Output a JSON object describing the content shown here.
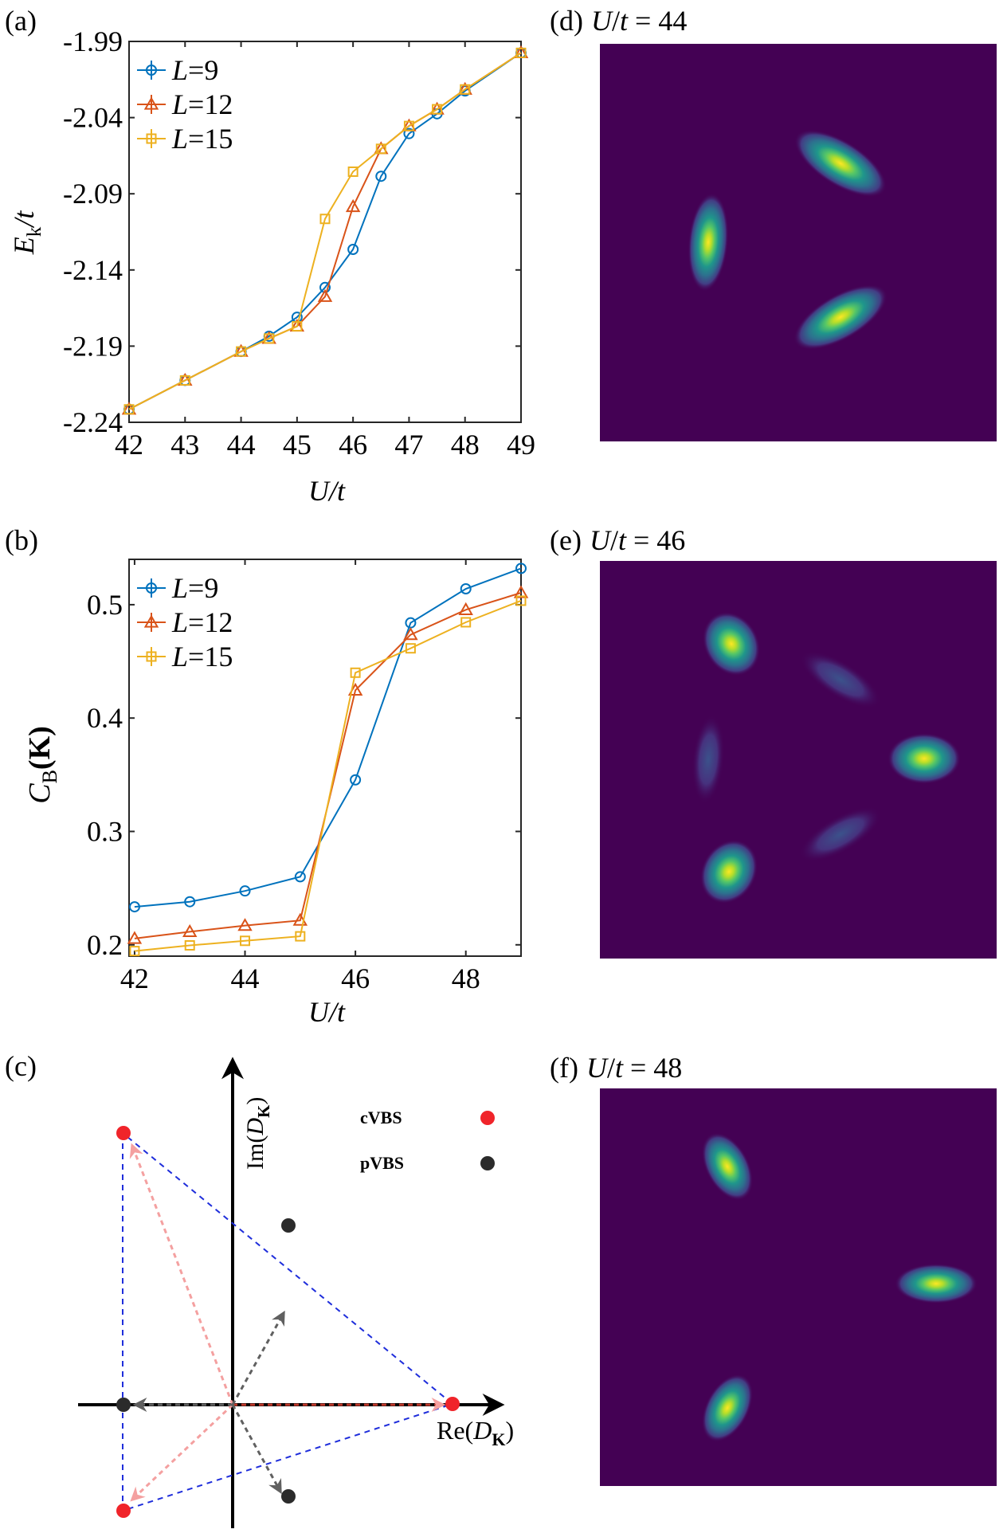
{
  "panel_labels": {
    "a": "(a)",
    "b": "(b)",
    "c": "(c)",
    "d": "(d)",
    "e": "(e)",
    "f": "(f)"
  },
  "heatmap_titles": {
    "d": {
      "var": "U",
      "slash": "/",
      "t": "t",
      "eq": " = 44"
    },
    "e": {
      "var": "U",
      "slash": "/",
      "t": "t",
      "eq": " = 46"
    },
    "f": {
      "var": "U",
      "slash": "/",
      "t": "t",
      "eq": " = 48"
    }
  },
  "colors": {
    "L9": "#0072BD",
    "L12": "#D95319",
    "L15": "#EDB120",
    "heat_bg": "#440154",
    "cvbs": "#F0242A",
    "pvbs": "#2B2B2B",
    "triangle": "#1F2EDB",
    "red_arrow": "#F4A0A0",
    "gray_arrow": "#606060"
  },
  "chart_data": [
    {
      "id": "a",
      "type": "line",
      "xlabel": {
        "main": "U",
        "rest": "/t"
      },
      "ylabel": {
        "main": "E",
        "sub": "k",
        "rest": "/t"
      },
      "xlim": [
        42,
        49
      ],
      "ylim": [
        -2.24,
        -1.99
      ],
      "xticks": [
        42,
        43,
        44,
        45,
        46,
        47,
        48,
        49
      ],
      "xtick_labels": [
        "42",
        "43",
        "44",
        "45",
        "46",
        "47",
        "48",
        "49"
      ],
      "yticks": [
        -2.24,
        -2.19,
        -2.14,
        -2.09,
        -2.04,
        -1.99
      ],
      "ytick_labels": [
        "-2.24",
        "-2.19",
        "-2.14",
        "-2.09",
        "-2.04",
        "-1.99"
      ],
      "legend_position": "top-left",
      "series": [
        {
          "key": "L9",
          "name_var": "L",
          "name_val": "=9",
          "marker": "circle",
          "x": [
            42,
            43,
            44,
            44.5,
            45,
            45.5,
            46,
            46.5,
            47,
            47.5,
            48,
            49
          ],
          "y": [
            -2.2315,
            -2.2125,
            -2.1935,
            -2.1835,
            -2.171,
            -2.1515,
            -2.1265,
            -2.0785,
            -2.0505,
            -2.0375,
            -2.0225,
            -1.9975
          ]
        },
        {
          "key": "L12",
          "name_var": "L",
          "name_val": "=12",
          "marker": "triangle",
          "x": [
            42,
            43,
            44,
            44.5,
            45,
            45.5,
            46,
            46.5,
            47,
            47.5,
            48,
            49
          ],
          "y": [
            -2.2315,
            -2.2125,
            -2.1935,
            -2.185,
            -2.177,
            -2.1575,
            -2.0985,
            -2.0605,
            -2.0455,
            -2.0345,
            -2.0215,
            -1.9975
          ]
        },
        {
          "key": "L15",
          "name_var": "L",
          "name_val": "=15",
          "marker": "square",
          "x": [
            42,
            43,
            44,
            44.5,
            45,
            45.5,
            46,
            46.5,
            47,
            47.5,
            48,
            49
          ],
          "y": [
            -2.2315,
            -2.2125,
            -2.1935,
            -2.185,
            -2.177,
            -2.1065,
            -2.0755,
            -2.0605,
            -2.0455,
            -2.0345,
            -2.0215,
            -1.9975
          ]
        }
      ]
    },
    {
      "id": "b",
      "type": "line",
      "xlabel": {
        "main": "U",
        "rest": "/t"
      },
      "ylabel": {
        "main": "C",
        "sub": "B",
        "rest": "(K)"
      },
      "xlim": [
        41.9,
        49
      ],
      "ylim": [
        0.19,
        0.54
      ],
      "xticks": [
        42,
        44,
        46,
        48
      ],
      "xtick_labels": [
        "42",
        "44",
        "46",
        "48"
      ],
      "yticks": [
        0.2,
        0.3,
        0.4,
        0.5
      ],
      "ytick_labels": [
        "0.2",
        "0.3",
        "0.4",
        "0.5"
      ],
      "legend_position": "top-left",
      "series": [
        {
          "key": "L9",
          "name_var": "L",
          "name_val": "=9",
          "marker": "circle",
          "x": [
            42,
            43,
            44,
            45,
            46,
            47,
            48,
            49
          ],
          "y": [
            0.2335,
            0.238,
            0.2475,
            0.26,
            0.3455,
            0.484,
            0.514,
            0.532
          ]
        },
        {
          "key": "L12",
          "name_var": "L",
          "name_val": "=12",
          "marker": "triangle",
          "x": [
            42,
            43,
            44,
            45,
            46,
            47,
            48,
            49
          ],
          "y": [
            0.2055,
            0.2115,
            0.217,
            0.2215,
            0.4245,
            0.4735,
            0.4955,
            0.5105
          ]
        },
        {
          "key": "L15",
          "name_var": "L",
          "name_val": "=15",
          "marker": "square",
          "x": [
            42,
            43,
            44,
            45,
            46,
            47,
            48,
            49
          ],
          "y": [
            0.1945,
            0.1995,
            0.2035,
            0.2075,
            0.44,
            0.4615,
            0.4845,
            0.5035
          ]
        }
      ]
    }
  ],
  "diagram_c": {
    "re_label": {
      "a": "Re(",
      "D": "D",
      "sub": "K",
      "b": ")"
    },
    "im_label": {
      "a": "Im(",
      "D": "D",
      "sub": "K",
      "b": ")"
    },
    "legend": [
      {
        "key": "cvbs",
        "label": "cVBS"
      },
      {
        "key": "pvbs",
        "label": "pVBS"
      }
    ]
  }
}
